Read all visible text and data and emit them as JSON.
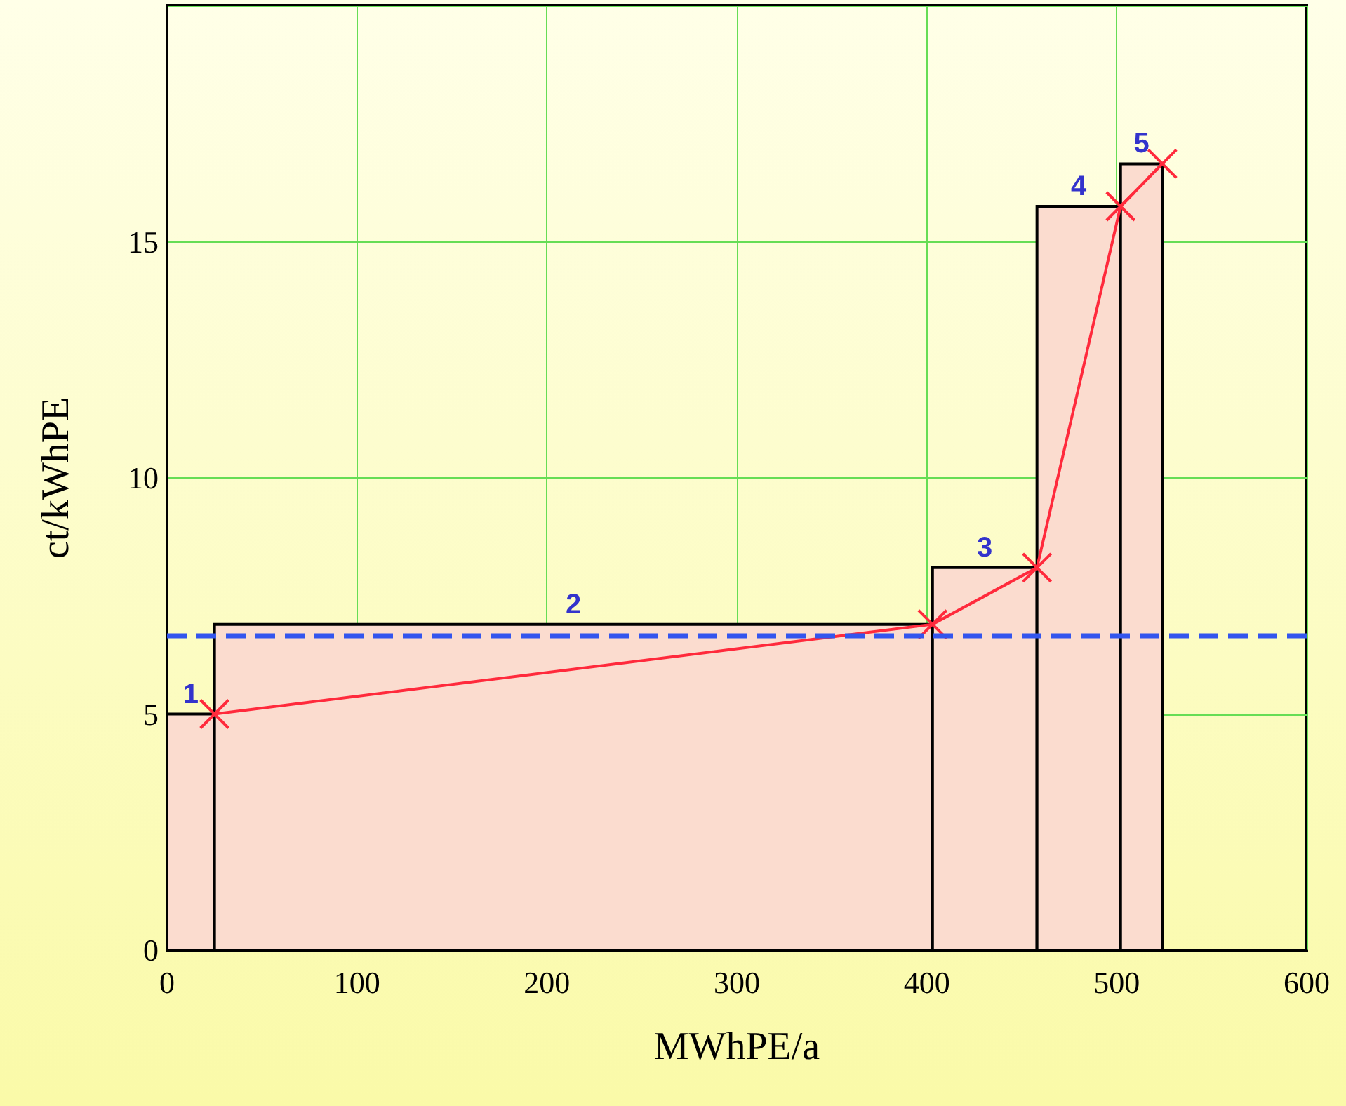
{
  "chart_data": {
    "type": "histogram",
    "xlabel": "MWhPE/a",
    "ylabel": "ct/kWhPE",
    "bins": [
      0,
      25,
      403,
      458,
      502,
      524
    ],
    "series": [
      {
        "color": "#fbdccf",
        "values": [
          5,
          6.9,
          8.1,
          15.75,
          16.65
        ]
      },
      {
        "type": "line",
        "color": "#ff2a3c",
        "marker": "cross",
        "x": [
          25,
          403,
          458,
          502,
          524
        ],
        "values": [
          5,
          6.9,
          8.1,
          15.75,
          16.65
        ]
      }
    ],
    "ref_lines": [
      {
        "axis": "y",
        "value": 6.65,
        "color": "#3355ee",
        "line_style": "dashed"
      }
    ],
    "annotations": [
      "1",
      "2",
      "3",
      "4",
      "5"
    ],
    "xlim": [
      0,
      600
    ],
    "xticks": [
      0,
      100,
      200,
      300,
      400,
      500,
      600
    ],
    "ylim": [
      0,
      20
    ],
    "yticks": [
      0,
      5,
      10,
      15,
      {
        "value": 20,
        "label": null
      }
    ],
    "grid": true
  }
}
